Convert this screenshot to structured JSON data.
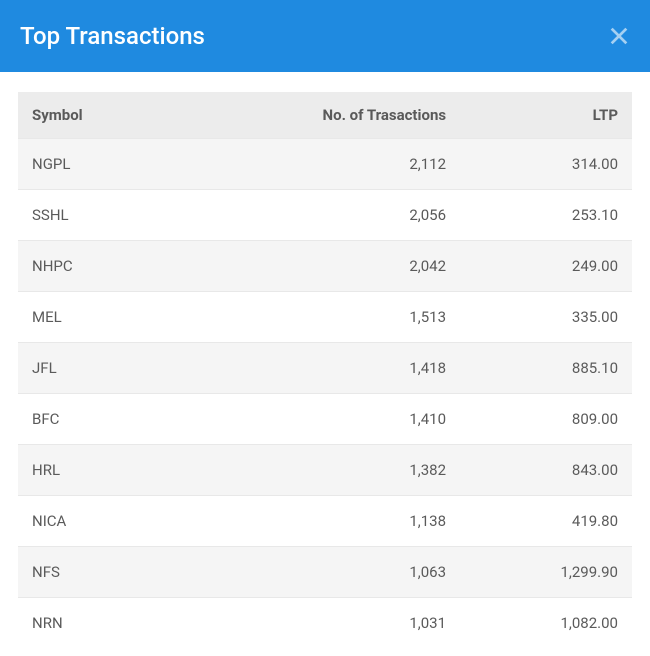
{
  "header": {
    "title": "Top Transactions"
  },
  "table": {
    "columns": [
      {
        "key": "symbol",
        "label": "Symbol",
        "align": "left"
      },
      {
        "key": "transactions",
        "label": "No. of Trasactions",
        "align": "right"
      },
      {
        "key": "ltp",
        "label": "LTP",
        "align": "right"
      }
    ],
    "rows": [
      {
        "symbol": "NGPL",
        "transactions": "2,112",
        "ltp": "314.00"
      },
      {
        "symbol": "SSHL",
        "transactions": "2,056",
        "ltp": "253.10"
      },
      {
        "symbol": "NHPC",
        "transactions": "2,042",
        "ltp": "249.00"
      },
      {
        "symbol": "MEL",
        "transactions": "1,513",
        "ltp": "335.00"
      },
      {
        "symbol": "JFL",
        "transactions": "1,418",
        "ltp": "885.10"
      },
      {
        "symbol": "BFC",
        "transactions": "1,410",
        "ltp": "809.00"
      },
      {
        "symbol": "HRL",
        "transactions": "1,382",
        "ltp": "843.00"
      },
      {
        "symbol": "NICA",
        "transactions": "1,138",
        "ltp": "419.80"
      },
      {
        "symbol": "NFS",
        "transactions": "1,063",
        "ltp": "1,299.90"
      },
      {
        "symbol": "NRN",
        "transactions": "1,031",
        "ltp": "1,082.00"
      }
    ]
  },
  "colors": {
    "header_bg": "#1f8ae0",
    "header_text": "#ffffff",
    "thead_bg": "#ececec",
    "row_odd_bg": "#f5f5f5",
    "row_even_bg": "#ffffff",
    "text_color": "#5a5a5a",
    "border_color": "#e8e8e8"
  }
}
